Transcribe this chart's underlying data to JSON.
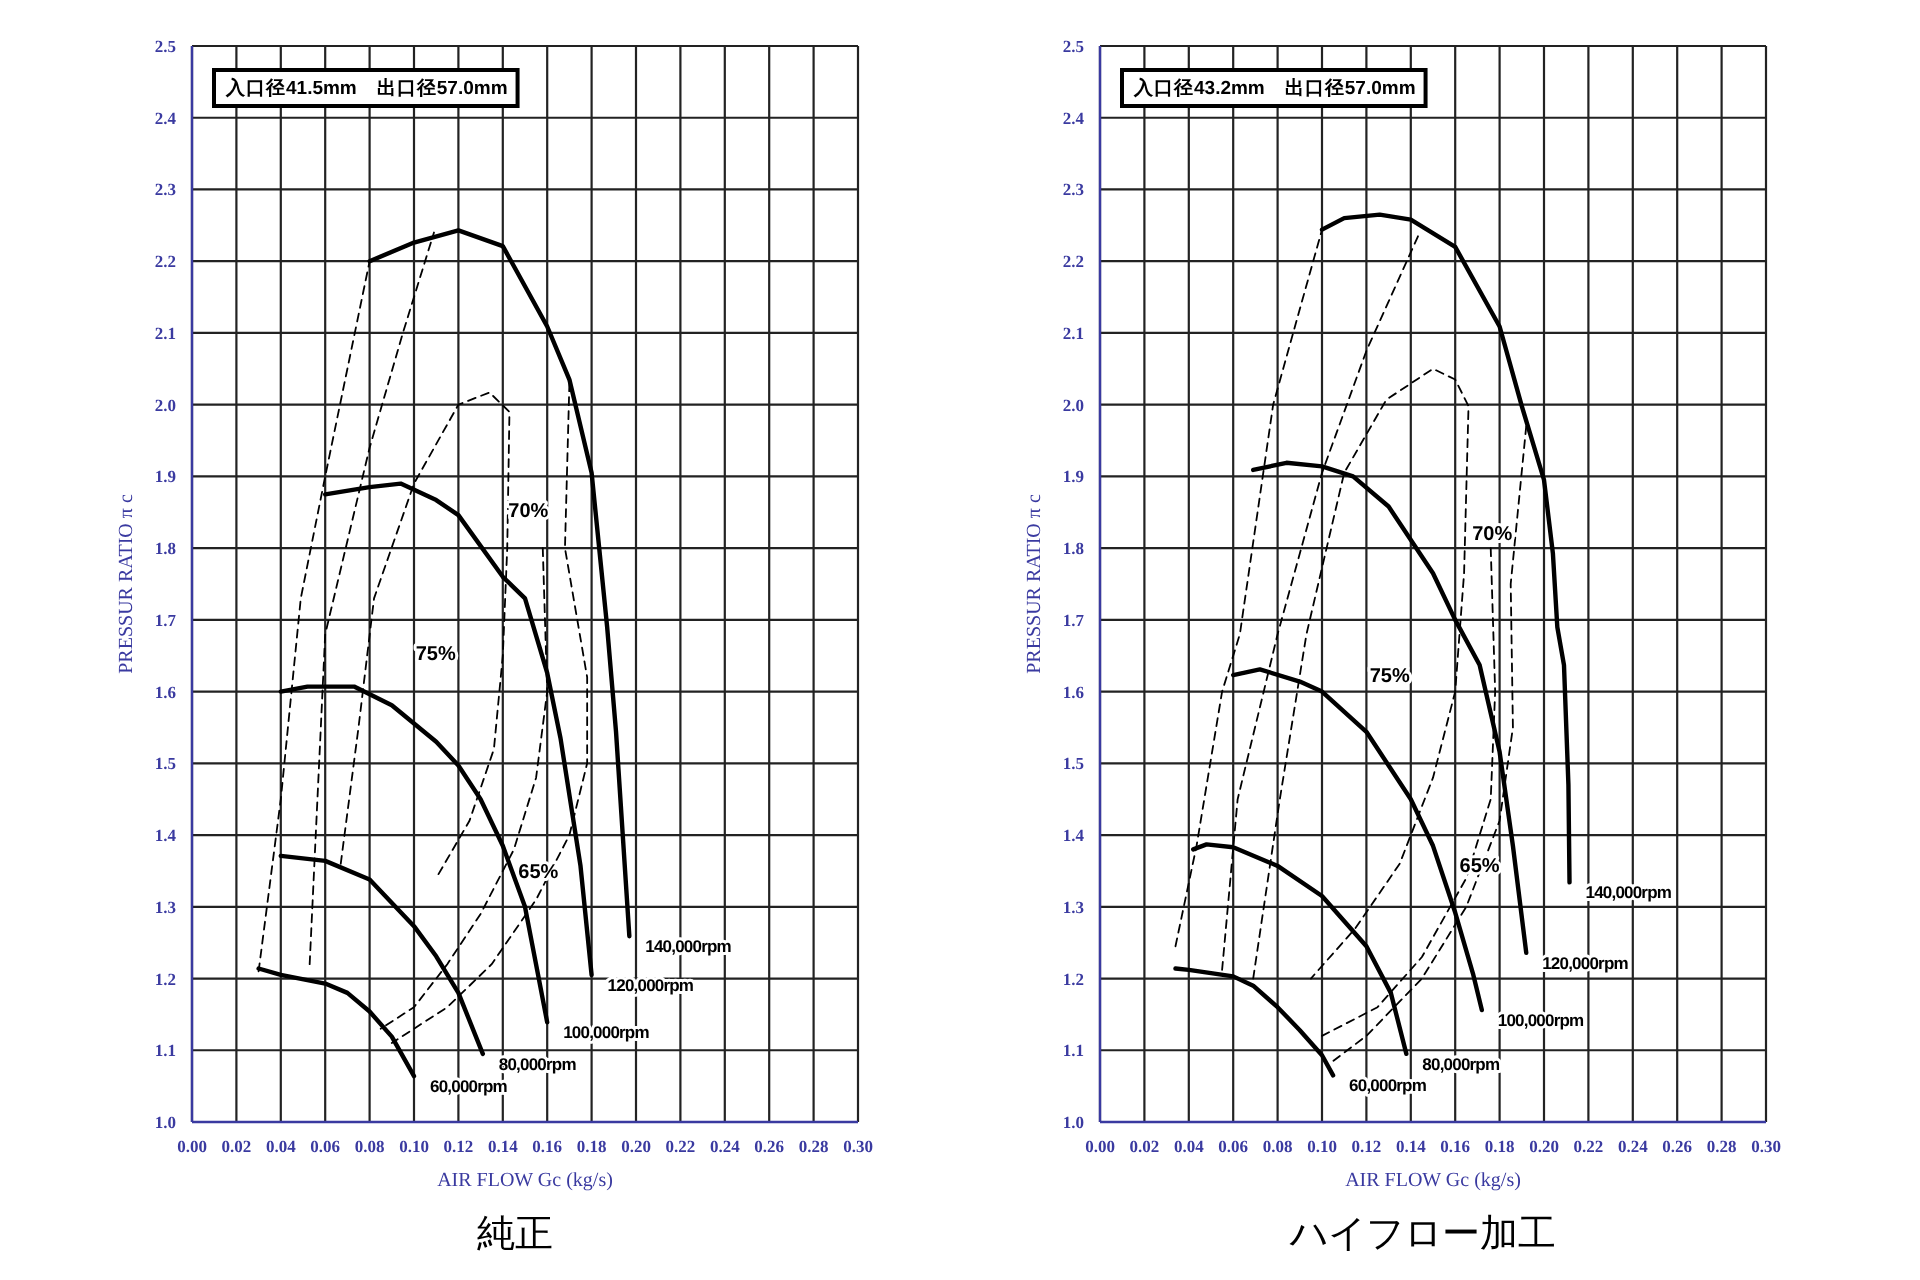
{
  "chart_data": [
    {
      "type": "line",
      "title": "純正",
      "xlabel": "AIR FLOW Gc (kg/s)",
      "ylabel": "PRESSUR RATIO π c",
      "grid": true,
      "xlim": [
        0,
        0.3
      ],
      "ylim": [
        1.0,
        2.5
      ],
      "xticks": [
        {
          "value": 0,
          "label": "0.00"
        },
        {
          "value": 0.02,
          "label": "0.02"
        },
        {
          "value": 0.04,
          "label": "0.04"
        },
        {
          "value": 0.06,
          "label": "0.06"
        },
        {
          "value": 0.08,
          "label": "0.08"
        },
        {
          "value": 0.1,
          "label": "0.10"
        },
        {
          "value": 0.12,
          "label": "0.12"
        },
        {
          "value": 0.14,
          "label": "0.14"
        },
        {
          "value": 0.16,
          "label": "0.16"
        },
        {
          "value": 0.18,
          "label": "0.18"
        },
        {
          "value": 0.2,
          "label": "0.20"
        },
        {
          "value": 0.22,
          "label": "0.22"
        },
        {
          "value": 0.24,
          "label": "0.24"
        },
        {
          "value": 0.26,
          "label": "0.26"
        },
        {
          "value": 0.28,
          "label": "0.28"
        },
        {
          "value": 0.3,
          "label": "0.30"
        }
      ],
      "yticks": [
        {
          "value": 1.0,
          "label": "1.0"
        },
        {
          "value": 1.1,
          "label": "1.1"
        },
        {
          "value": 1.2,
          "label": "1.2"
        },
        {
          "value": 1.3,
          "label": "1.3"
        },
        {
          "value": 1.4,
          "label": "1.4"
        },
        {
          "value": 1.5,
          "label": "1.5"
        },
        {
          "value": 1.6,
          "label": "1.6"
        },
        {
          "value": 1.7,
          "label": "1.7"
        },
        {
          "value": 1.8,
          "label": "1.8"
        },
        {
          "value": 1.9,
          "label": "1.9"
        },
        {
          "value": 2.0,
          "label": "2.0"
        },
        {
          "value": 2.1,
          "label": "2.1"
        },
        {
          "value": 2.2,
          "label": "2.2"
        },
        {
          "value": 2.3,
          "label": "2.3"
        },
        {
          "value": 2.4,
          "label": "2.4"
        },
        {
          "value": 2.5,
          "label": "2.5"
        }
      ],
      "series": [
        {
          "name": "60,000rpm",
          "color": "#000000",
          "x": [
            0.03,
            0.04,
            0.06,
            0.07,
            0.08,
            0.09,
            0.1
          ],
          "values": [
            1.214,
            1.205,
            1.193,
            1.18,
            1.154,
            1.119,
            1.064
          ]
        },
        {
          "name": "80,000rpm",
          "color": "#000000",
          "x": [
            0.04,
            0.06,
            0.08,
            0.1,
            0.11,
            0.12,
            0.131
          ],
          "values": [
            1.371,
            1.364,
            1.338,
            1.273,
            1.231,
            1.18,
            1.095
          ]
        },
        {
          "name": "100,000rpm",
          "color": "#000000",
          "x": [
            0.04,
            0.052,
            0.073,
            0.09,
            0.11,
            0.12,
            0.13,
            0.14,
            0.15,
            0.16
          ],
          "values": [
            1.6,
            1.607,
            1.607,
            1.581,
            1.53,
            1.497,
            1.45,
            1.385,
            1.3,
            1.139
          ]
        },
        {
          "name": "120,000rpm",
          "color": "#000000",
          "x": [
            0.06,
            0.08,
            0.094,
            0.11,
            0.12,
            0.14,
            0.15,
            0.16,
            0.166,
            0.175,
            0.18
          ],
          "values": [
            1.875,
            1.885,
            1.89,
            1.867,
            1.846,
            1.76,
            1.73,
            1.626,
            1.535,
            1.357,
            1.205
          ]
        },
        {
          "name": "140,000rpm",
          "color": "#000000",
          "x": [
            0.08,
            0.1,
            0.12,
            0.14,
            0.16,
            0.17,
            0.18,
            0.187,
            0.191,
            0.197
          ],
          "values": [
            2.2,
            2.226,
            2.243,
            2.221,
            2.109,
            2.035,
            1.905,
            1.69,
            1.544,
            1.259
          ]
        },
        {
          "color": "#000000",
          "line_style": "dashed",
          "x": [
            0.03,
            0.04,
            0.049,
            0.06,
            0.08
          ],
          "values": [
            1.21,
            1.45,
            1.73,
            1.9,
            2.2
          ]
        },
        {
          "color": "#000000",
          "line_style": "dashed",
          "x": [
            0.17,
            0.168,
            0.178,
            0.178,
            0.17,
            0.155,
            0.135,
            0.115,
            0.09
          ],
          "values": [
            2.03,
            1.8,
            1.62,
            1.5,
            1.4,
            1.31,
            1.22,
            1.16,
            1.11
          ]
        },
        {
          "color": "#000000",
          "line_style": "dashed",
          "x": [
            0.053,
            0.06,
            0.08,
            0.095,
            0.109
          ],
          "values": [
            1.22,
            1.68,
            1.94,
            2.1,
            2.24
          ]
        },
        {
          "color": "#000000",
          "line_style": "dashed",
          "x": [
            0.158,
            0.16,
            0.155,
            0.145,
            0.13,
            0.115,
            0.1,
            0.085
          ],
          "values": [
            1.8,
            1.6,
            1.48,
            1.38,
            1.29,
            1.22,
            1.16,
            1.13
          ]
        },
        {
          "color": "#000000",
          "line_style": "dashed",
          "x": [
            0.067,
            0.075,
            0.082,
            0.1,
            0.12,
            0.134,
            0.143,
            0.142,
            0.14,
            0.136,
            0.125,
            0.11
          ],
          "values": [
            1.36,
            1.55,
            1.73,
            1.89,
            2.0,
            2.017,
            1.99,
            1.8,
            1.65,
            1.52,
            1.42,
            1.34
          ]
        }
      ],
      "annotations": [
        "入口径41.5mm　出口径57.0mm",
        "70%",
        "75%",
        "65%"
      ]
    },
    {
      "type": "line",
      "title": "ハイフロー加工",
      "xlabel": "AIR FLOW Gc (kg/s)",
      "ylabel": "PRESSUR RATIO π c",
      "grid": true,
      "xlim": [
        0,
        0.3
      ],
      "ylim": [
        1.0,
        2.5
      ],
      "xticks": [
        {
          "value": 0,
          "label": "0.00"
        },
        {
          "value": 0.02,
          "label": "0.02"
        },
        {
          "value": 0.04,
          "label": "0.04"
        },
        {
          "value": 0.06,
          "label": "0.06"
        },
        {
          "value": 0.08,
          "label": "0.08"
        },
        {
          "value": 0.1,
          "label": "0.10"
        },
        {
          "value": 0.12,
          "label": "0.12"
        },
        {
          "value": 0.14,
          "label": "0.14"
        },
        {
          "value": 0.16,
          "label": "0.16"
        },
        {
          "value": 0.18,
          "label": "0.18"
        },
        {
          "value": 0.2,
          "label": "0.20"
        },
        {
          "value": 0.22,
          "label": "0.22"
        },
        {
          "value": 0.24,
          "label": "0.24"
        },
        {
          "value": 0.26,
          "label": "0.26"
        },
        {
          "value": 0.28,
          "label": "0.28"
        },
        {
          "value": 0.3,
          "label": "0.30"
        }
      ],
      "yticks": [
        {
          "value": 1.0,
          "label": "1.0"
        },
        {
          "value": 1.1,
          "label": "1.1"
        },
        {
          "value": 1.2,
          "label": "1.2"
        },
        {
          "value": 1.3,
          "label": "1.3"
        },
        {
          "value": 1.4,
          "label": "1.4"
        },
        {
          "value": 1.5,
          "label": "1.5"
        },
        {
          "value": 1.6,
          "label": "1.6"
        },
        {
          "value": 1.7,
          "label": "1.7"
        },
        {
          "value": 1.8,
          "label": "1.8"
        },
        {
          "value": 1.9,
          "label": "1.9"
        },
        {
          "value": 2.0,
          "label": "2.0"
        },
        {
          "value": 2.1,
          "label": "2.1"
        },
        {
          "value": 2.2,
          "label": "2.2"
        },
        {
          "value": 2.3,
          "label": "2.3"
        },
        {
          "value": 2.4,
          "label": "2.4"
        },
        {
          "value": 2.5,
          "label": "2.5"
        }
      ],
      "series": [
        {
          "name": "60,000rpm",
          "color": "#000000",
          "x": [
            0.034,
            0.04,
            0.06,
            0.069,
            0.08,
            0.09,
            0.1,
            0.105
          ],
          "values": [
            1.214,
            1.212,
            1.203,
            1.19,
            1.16,
            1.128,
            1.093,
            1.065
          ]
        },
        {
          "name": "80,000rpm",
          "color": "#000000",
          "x": [
            0.042,
            0.048,
            0.06,
            0.08,
            0.1,
            0.12,
            0.131,
            0.138
          ],
          "values": [
            1.38,
            1.387,
            1.383,
            1.357,
            1.315,
            1.245,
            1.18,
            1.095
          ]
        },
        {
          "name": "100,000rpm",
          "color": "#000000",
          "x": [
            0.06,
            0.072,
            0.09,
            0.1,
            0.12,
            0.14,
            0.15,
            0.16,
            0.168,
            0.172
          ],
          "values": [
            1.623,
            1.631,
            1.614,
            1.6,
            1.544,
            1.45,
            1.385,
            1.292,
            1.207,
            1.156
          ]
        },
        {
          "name": "120,000rpm",
          "color": "#000000",
          "x": [
            0.069,
            0.084,
            0.1,
            0.114,
            0.13,
            0.15,
            0.16,
            0.171,
            0.18,
            0.186,
            0.192
          ],
          "values": [
            1.909,
            1.919,
            1.914,
            1.9,
            1.858,
            1.765,
            1.7,
            1.637,
            1.516,
            1.385,
            1.236
          ]
        },
        {
          "name": "140,000rpm",
          "color": "#000000",
          "x": [
            0.1,
            0.11,
            0.126,
            0.14,
            0.16,
            0.18,
            0.19,
            0.2,
            0.204,
            0.206,
            0.209,
            0.211,
            0.2115
          ],
          "values": [
            2.244,
            2.26,
            2.265,
            2.258,
            2.22,
            2.109,
            1.998,
            1.895,
            1.793,
            1.69,
            1.637,
            1.47,
            1.334
          ]
        },
        {
          "color": "#000000",
          "line_style": "dashed",
          "x": [
            0.034,
            0.0435,
            0.055,
            0.063,
            0.078,
            0.1
          ],
          "values": [
            1.245,
            1.385,
            1.6,
            1.68,
            2.0,
            2.244
          ]
        },
        {
          "color": "#000000",
          "line_style": "dashed",
          "x": [
            0.192,
            0.185,
            0.186,
            0.18,
            0.165,
            0.145,
            0.12,
            0.105
          ],
          "values": [
            1.97,
            1.75,
            1.55,
            1.42,
            1.3,
            1.2,
            1.12,
            1.085
          ]
        },
        {
          "color": "#000000",
          "line_style": "dashed",
          "x": [
            0.055,
            0.062,
            0.08,
            0.1,
            0.12,
            0.144
          ],
          "values": [
            1.212,
            1.45,
            1.68,
            1.905,
            2.075,
            2.24
          ]
        },
        {
          "color": "#000000",
          "line_style": "dashed",
          "x": [
            0.176,
            0.178,
            0.176,
            0.165,
            0.145,
            0.125,
            0.1
          ],
          "values": [
            1.8,
            1.6,
            1.45,
            1.34,
            1.23,
            1.16,
            1.12
          ]
        },
        {
          "color": "#000000",
          "line_style": "dashed",
          "x": [
            0.069,
            0.081,
            0.093,
            0.11,
            0.129,
            0.15,
            0.16,
            0.166,
            0.164,
            0.16,
            0.15,
            0.135,
            0.115,
            0.095
          ],
          "values": [
            1.2,
            1.45,
            1.68,
            1.905,
            2.007,
            2.05,
            2.035,
            1.998,
            1.765,
            1.6,
            1.48,
            1.36,
            1.27,
            1.2
          ]
        }
      ],
      "annotations": [
        "入口径43.2mm　出口径57.0mm",
        "70%",
        "75%",
        "65%"
      ]
    }
  ]
}
